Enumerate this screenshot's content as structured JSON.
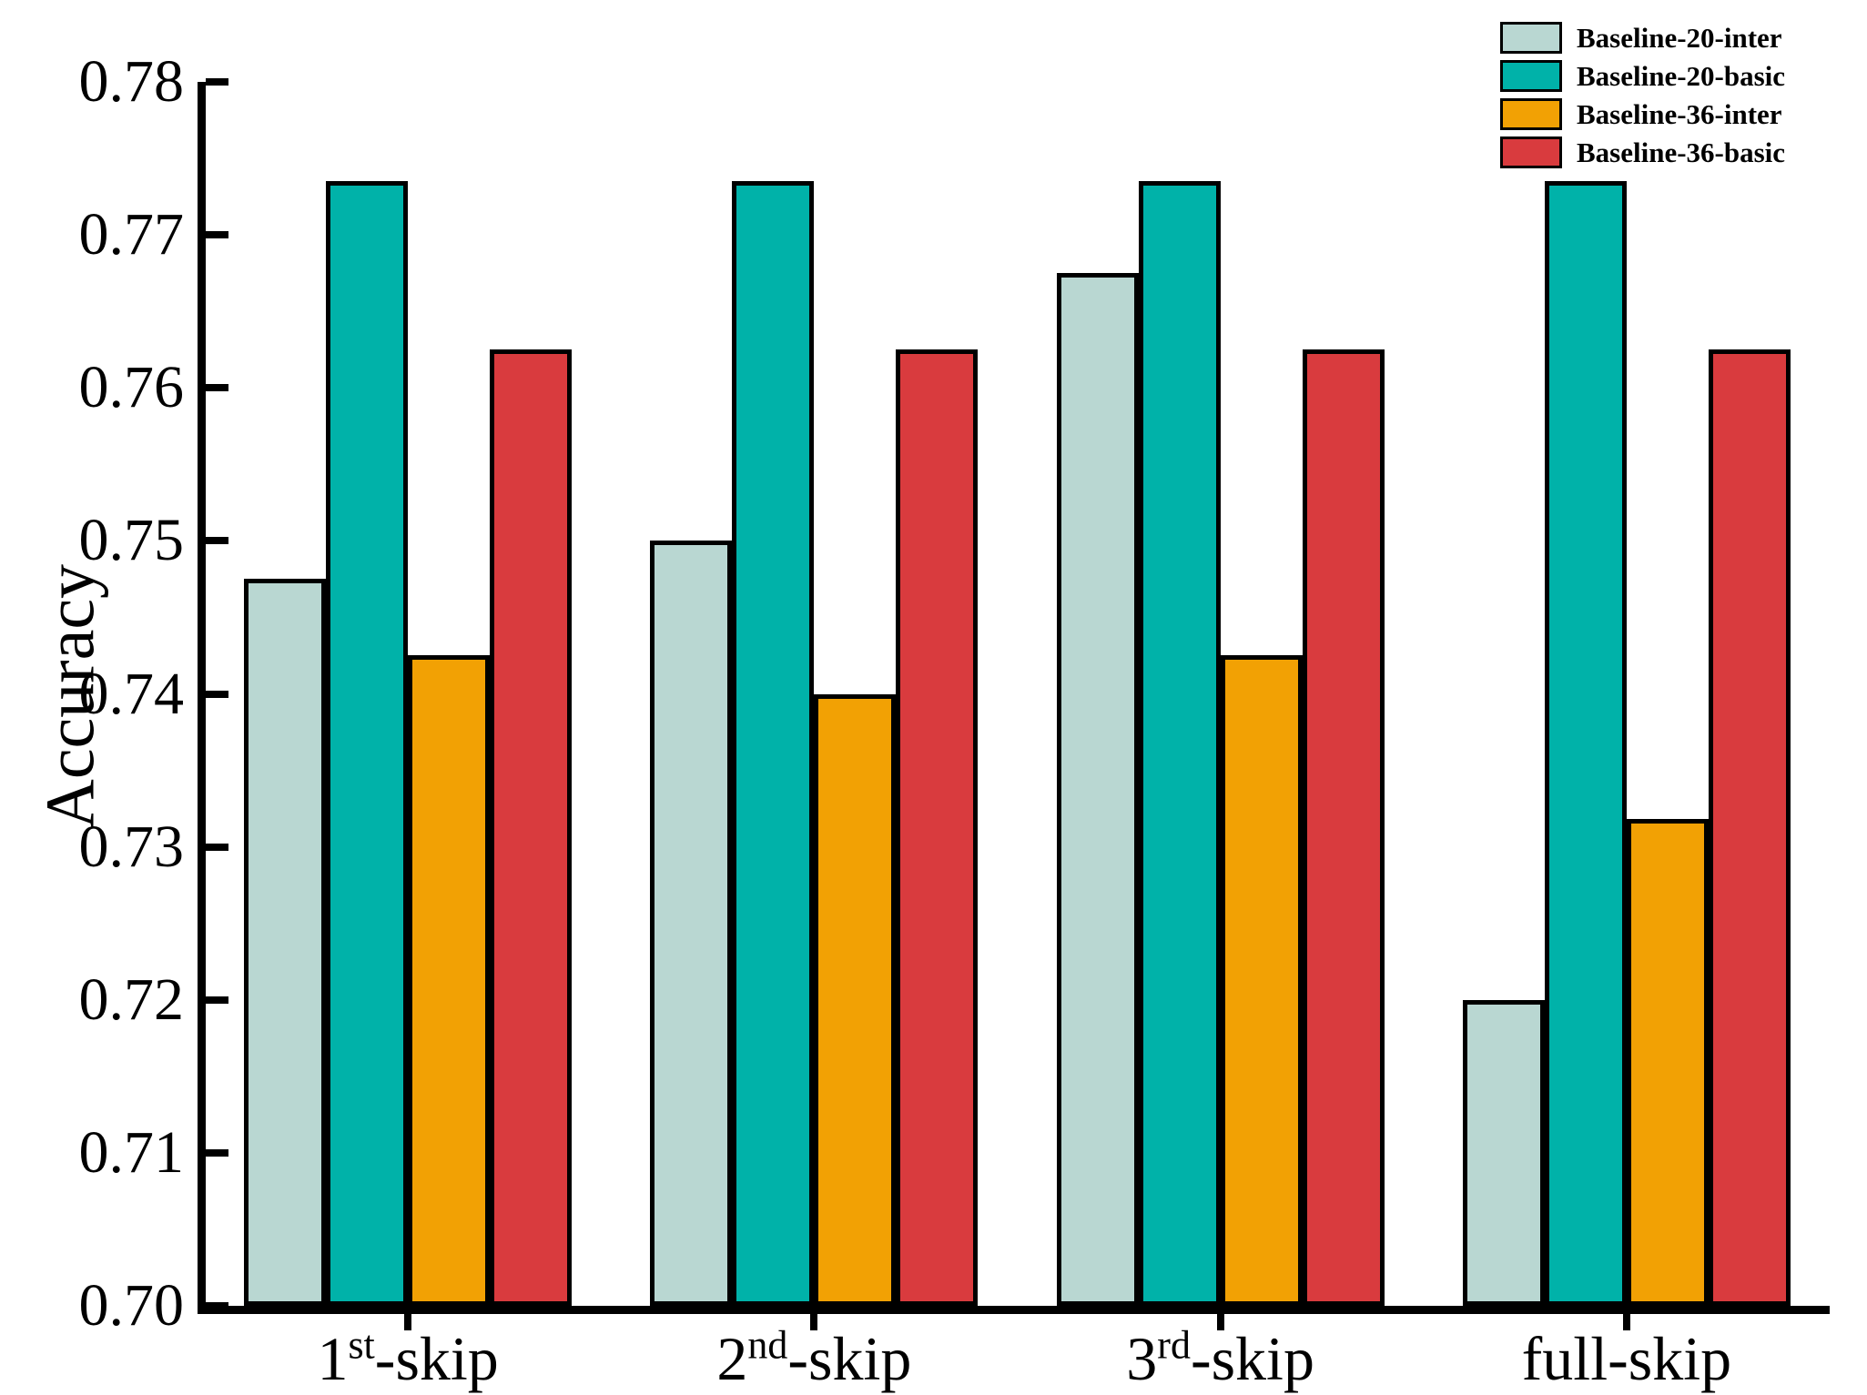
{
  "chart_data": {
    "type": "bar",
    "title": "",
    "xlabel": "",
    "ylabel": "Accuracy",
    "ylim": [
      0.7,
      0.78
    ],
    "ytick_step": 0.01,
    "ytick_labels": [
      "0.70",
      "0.71",
      "0.72",
      "0.73",
      "0.74",
      "0.75",
      "0.76",
      "0.77",
      "0.78"
    ],
    "grid": false,
    "legend_position": "top-right",
    "categories": [
      {
        "label": "1st-skip",
        "base": "1",
        "sup": "st",
        "rest": "-skip"
      },
      {
        "label": "2nd-skip",
        "base": "2",
        "sup": "nd",
        "rest": "-skip"
      },
      {
        "label": "3rd-skip",
        "base": "3",
        "sup": "rd",
        "rest": "-skip"
      },
      {
        "label": "full-skip",
        "base": "full-skip",
        "sup": "",
        "rest": ""
      }
    ],
    "series": [
      {
        "name": "Baseline-20-inter",
        "color": "#b9d7d2",
        "values": [
          0.7475,
          0.75,
          0.7675,
          0.72
        ]
      },
      {
        "name": "Baseline-20-basic",
        "color": "#00b2a9",
        "values": [
          0.7735,
          0.7735,
          0.7735,
          0.7735
        ]
      },
      {
        "name": "Baseline-36-inter",
        "color": "#f2a104",
        "values": [
          0.7425,
          0.74,
          0.7425,
          0.7318
        ]
      },
      {
        "name": "Baseline-36-basic",
        "color": "#d93b3e",
        "values": [
          0.7625,
          0.7625,
          0.7625,
          0.7625
        ]
      }
    ],
    "axis_color": "#000000",
    "bar_edge_color": "#000000"
  }
}
